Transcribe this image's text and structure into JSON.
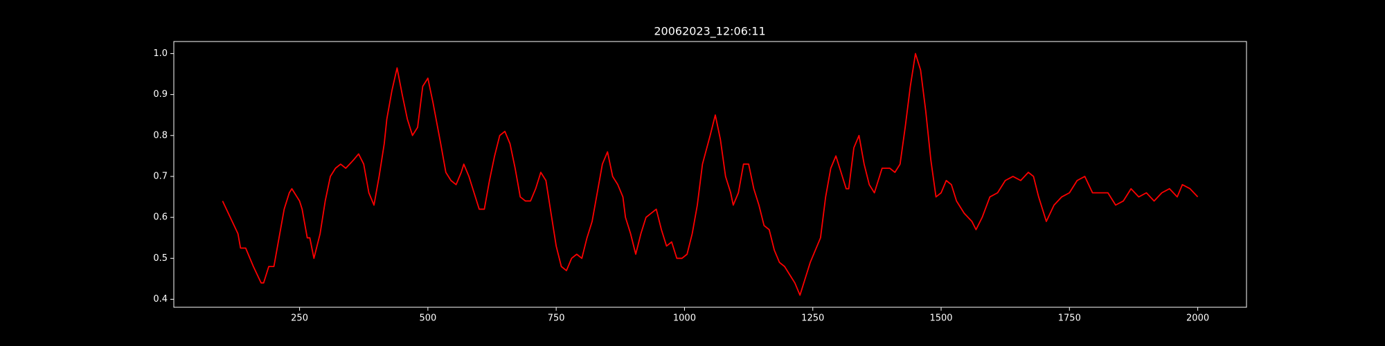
{
  "chart_data": {
    "type": "line",
    "title": "20062023_12:06:11",
    "x": [
      100,
      130,
      135,
      145,
      160,
      175,
      180,
      190,
      200,
      210,
      220,
      230,
      235,
      250,
      255,
      265,
      270,
      278,
      290,
      300,
      310,
      320,
      330,
      340,
      355,
      365,
      375,
      385,
      395,
      405,
      415,
      420,
      430,
      440,
      450,
      460,
      470,
      480,
      490,
      500,
      510,
      525,
      535,
      545,
      555,
      565,
      570,
      580,
      590,
      600,
      610,
      620,
      630,
      640,
      650,
      660,
      670,
      680,
      690,
      700,
      710,
      720,
      730,
      740,
      750,
      760,
      770,
      780,
      790,
      800,
      810,
      820,
      830,
      840,
      850,
      860,
      870,
      880,
      885,
      895,
      905,
      915,
      925,
      935,
      945,
      955,
      965,
      975,
      985,
      995,
      1005,
      1015,
      1025,
      1035,
      1050,
      1060,
      1070,
      1080,
      1090,
      1095,
      1105,
      1115,
      1125,
      1135,
      1145,
      1155,
      1165,
      1175,
      1185,
      1195,
      1205,
      1215,
      1225,
      1235,
      1245,
      1255,
      1265,
      1275,
      1285,
      1295,
      1305,
      1315,
      1320,
      1330,
      1340,
      1350,
      1360,
      1370,
      1380,
      1385,
      1400,
      1410,
      1420,
      1430,
      1440,
      1450,
      1460,
      1470,
      1480,
      1490,
      1500,
      1510,
      1520,
      1530,
      1545,
      1560,
      1568,
      1580,
      1595,
      1610,
      1625,
      1640,
      1655,
      1670,
      1680,
      1690,
      1705,
      1720,
      1735,
      1750,
      1765,
      1780,
      1795,
      1810,
      1825,
      1840,
      1855,
      1870,
      1885,
      1900,
      1915,
      1930,
      1945,
      1960,
      1970,
      1985,
      2000
    ],
    "values": [
      0.64,
      0.56,
      0.525,
      0.525,
      0.48,
      0.44,
      0.44,
      0.48,
      0.48,
      0.55,
      0.62,
      0.66,
      0.67,
      0.64,
      0.62,
      0.55,
      0.55,
      0.5,
      0.56,
      0.64,
      0.7,
      0.72,
      0.73,
      0.72,
      0.74,
      0.755,
      0.73,
      0.66,
      0.63,
      0.7,
      0.78,
      0.84,
      0.91,
      0.965,
      0.9,
      0.84,
      0.8,
      0.82,
      0.92,
      0.94,
      0.88,
      0.78,
      0.71,
      0.69,
      0.68,
      0.71,
      0.73,
      0.7,
      0.66,
      0.62,
      0.62,
      0.69,
      0.75,
      0.8,
      0.81,
      0.78,
      0.72,
      0.65,
      0.64,
      0.64,
      0.67,
      0.71,
      0.69,
      0.61,
      0.53,
      0.48,
      0.47,
      0.5,
      0.51,
      0.5,
      0.55,
      0.59,
      0.66,
      0.73,
      0.76,
      0.7,
      0.68,
      0.65,
      0.6,
      0.56,
      0.51,
      0.56,
      0.6,
      0.61,
      0.62,
      0.57,
      0.53,
      0.54,
      0.5,
      0.5,
      0.51,
      0.56,
      0.63,
      0.73,
      0.8,
      0.85,
      0.79,
      0.7,
      0.66,
      0.63,
      0.66,
      0.73,
      0.73,
      0.67,
      0.63,
      0.58,
      0.57,
      0.52,
      0.49,
      0.48,
      0.46,
      0.44,
      0.41,
      0.45,
      0.49,
      0.52,
      0.55,
      0.65,
      0.72,
      0.75,
      0.71,
      0.67,
      0.67,
      0.77,
      0.8,
      0.73,
      0.68,
      0.66,
      0.7,
      0.72,
      0.72,
      0.71,
      0.73,
      0.82,
      0.92,
      1.0,
      0.96,
      0.86,
      0.74,
      0.65,
      0.66,
      0.69,
      0.68,
      0.64,
      0.61,
      0.59,
      0.57,
      0.6,
      0.65,
      0.66,
      0.69,
      0.7,
      0.69,
      0.71,
      0.7,
      0.65,
      0.59,
      0.63,
      0.65,
      0.66,
      0.69,
      0.7,
      0.66,
      0.66,
      0.66,
      0.63,
      0.64,
      0.67,
      0.65,
      0.66,
      0.64,
      0.66,
      0.67,
      0.65,
      0.68,
      0.67,
      0.65
    ],
    "color": "#ff0000",
    "xlim": [
      5,
      2095
    ],
    "xticks": [
      250,
      500,
      750,
      1000,
      1250,
      1500,
      1750,
      2000
    ],
    "ylim": [
      0.3805,
      1.0295
    ],
    "yticks": [
      0.4,
      0.5,
      0.6,
      0.7,
      0.8,
      0.9,
      {
        "value": 1,
        "label": "1.0"
      }
    ]
  }
}
